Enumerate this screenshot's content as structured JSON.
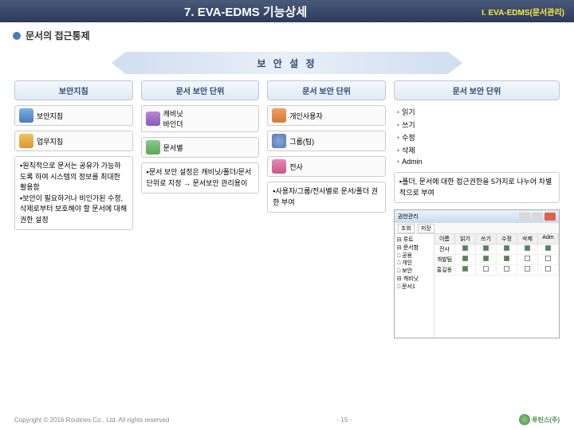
{
  "header": {
    "title": "7. EVA-EDMS 기능상세",
    "right": "I. EVA-EDMS(문서관리)"
  },
  "subtitle": "문서의 접근통제",
  "band": "보 안 설 정",
  "cols": {
    "c1": {
      "head": "보안지침",
      "item1": "보안지침",
      "item2": "업무지침",
      "text": "▪원칙적으로 문서는 공유가 가능하도록 하여 시스템의 정보를 최대한 활용함\n▪보안이 필요하거나 비인가된 수정, 삭제로부터 보호해야 할 문서에 대해 권한 설정"
    },
    "c2": {
      "head": "문서 보안 단위",
      "item1": "캐비닛\n바인더",
      "item2": "문서별",
      "text": "▪문서 보안 설정은 캐비닛/폴더/문서 단위로 지정 → 문서보안 관리용이"
    },
    "c3": {
      "head": "문서 보안 단위",
      "item1": "개인사용자",
      "item2": "그룹(팀)",
      "item3": "전사",
      "text": "▪사용자/그룹/전사별로 문서/폴더 권한 부여"
    },
    "c4": {
      "head": "문서 보안 단위",
      "perms": [
        "읽기",
        "쓰기",
        "수정",
        "삭제",
        "Admin"
      ],
      "text": "▪폴더, 문서에 대한 접근권한을 5가지로 나누어 차별적으로 부여"
    }
  },
  "screenshot": {
    "title": "권한관리",
    "tool": [
      "조회",
      "저장"
    ],
    "tree": [
      "⊟ 루트",
      "  ⊟ 문서함",
      "    □ 공용",
      "    □ 개인",
      "    □ 보안",
      "  ⊟ 캐비닛",
      "    □ 문서1"
    ],
    "gridH": [
      "이름",
      "읽기",
      "쓰기",
      "수정",
      "삭제",
      "Adm"
    ],
    "gridR": [
      [
        "전사",
        "1",
        "1",
        "1",
        "1",
        "1"
      ],
      [
        "개발팀",
        "1",
        "1",
        "1",
        "0",
        "0"
      ],
      [
        "홍길동",
        "1",
        "0",
        "0",
        "0",
        "0"
      ]
    ]
  },
  "footer": {
    "copy": "Copyright © 2016 Routines Co., Ltd. All rights reserved",
    "page": "- 15 -",
    "logo": "루틴스(주)"
  }
}
